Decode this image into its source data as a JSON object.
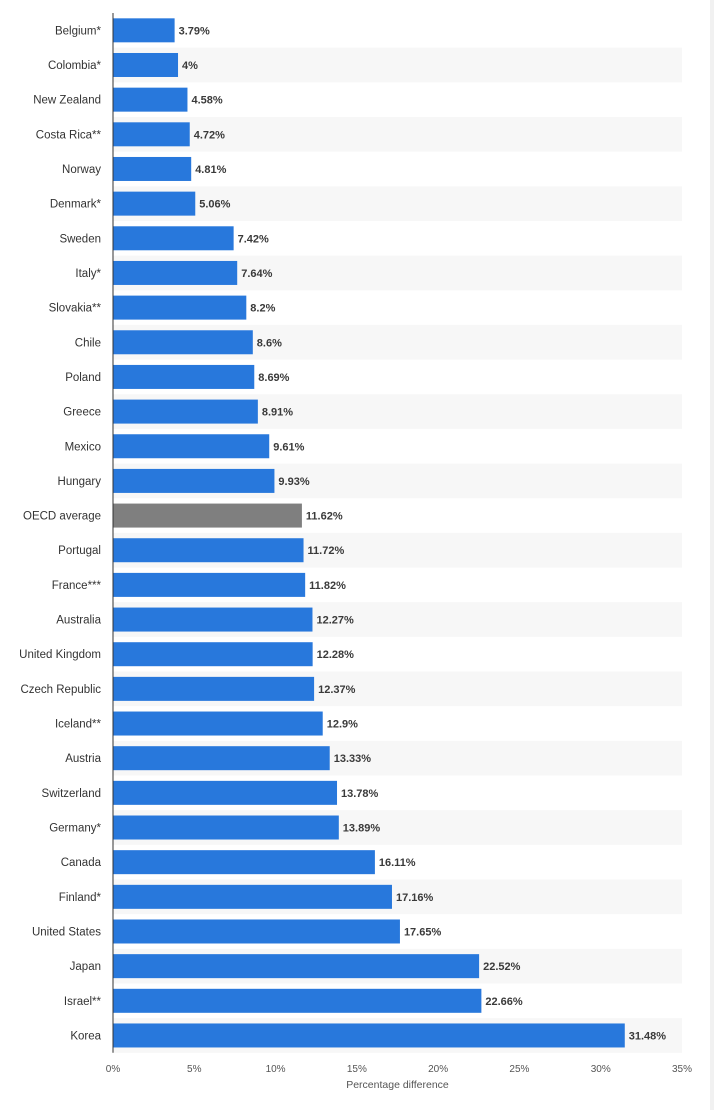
{
  "chart_data": {
    "type": "bar",
    "orientation": "horizontal",
    "categories": [
      "Belgium*",
      "Colombia*",
      "New Zealand",
      "Costa Rica**",
      "Norway",
      "Denmark*",
      "Sweden",
      "Italy*",
      "Slovakia**",
      "Chile",
      "Poland",
      "Greece",
      "Mexico",
      "Hungary",
      "OECD average",
      "Portugal",
      "France***",
      "Australia",
      "United Kingdom",
      "Czech Republic",
      "Iceland**",
      "Austria",
      "Switzerland",
      "Germany*",
      "Canada",
      "Finland*",
      "United States",
      "Japan",
      "Israel**",
      "Korea"
    ],
    "values": [
      3.79,
      4,
      4.58,
      4.72,
      4.81,
      5.06,
      7.42,
      7.64,
      8.2,
      8.6,
      8.69,
      8.91,
      9.61,
      9.93,
      11.62,
      11.72,
      11.82,
      12.27,
      12.28,
      12.37,
      12.9,
      13.33,
      13.78,
      13.89,
      16.11,
      17.16,
      17.65,
      22.52,
      22.66,
      31.48
    ],
    "value_labels": [
      "3.79%",
      "4%",
      "4.58%",
      "4.72%",
      "4.81%",
      "5.06%",
      "7.42%",
      "7.64%",
      "8.2%",
      "8.6%",
      "8.69%",
      "8.91%",
      "9.61%",
      "9.93%",
      "11.62%",
      "11.72%",
      "11.82%",
      "12.27%",
      "12.28%",
      "12.37%",
      "12.9%",
      "13.33%",
      "13.78%",
      "13.89%",
      "16.11%",
      "17.16%",
      "17.65%",
      "22.52%",
      "22.66%",
      "31.48%"
    ],
    "highlight_category": "OECD average",
    "xlim": [
      0,
      35
    ],
    "xticks": [
      0,
      5,
      10,
      15,
      20,
      25,
      30,
      35
    ],
    "xtick_labels": [
      "0%",
      "5%",
      "10%",
      "15%",
      "20%",
      "25%",
      "30%",
      "35%"
    ],
    "xlabel": "Percentage difference",
    "ylabel": "",
    "title": "",
    "grid": false,
    "alternating_row_shading": true,
    "colors": {
      "bar": "#2878dc",
      "highlight_bar": "#7f7f7f",
      "row_shade": "#f7f7f7",
      "axis": "#333333"
    }
  }
}
